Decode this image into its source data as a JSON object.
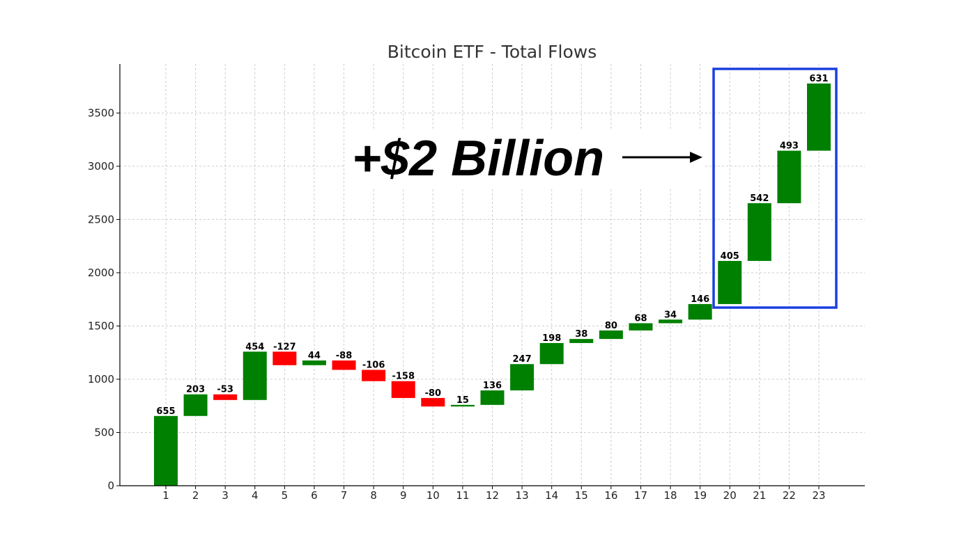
{
  "chart_data": {
    "type": "waterfall",
    "title": "Bitcoin ETF - Total Flows",
    "xlabel": "",
    "ylabel": "",
    "categories": [
      "1",
      "2",
      "3",
      "4",
      "5",
      "6",
      "7",
      "8",
      "9",
      "10",
      "11",
      "12",
      "13",
      "14",
      "15",
      "16",
      "17",
      "18",
      "19",
      "20",
      "21",
      "22",
      "23"
    ],
    "values": [
      655,
      203,
      -53,
      454,
      -127,
      44,
      -88,
      -106,
      -158,
      -80,
      15,
      136,
      247,
      198,
      38,
      80,
      68,
      34,
      146,
      405,
      542,
      493,
      631
    ],
    "yticks": [
      0,
      500,
      1000,
      1500,
      2000,
      2500,
      3000,
      3500
    ],
    "ylim": [
      0,
      3960
    ],
    "grid": true,
    "colors": {
      "positive": "#008000",
      "negative": "#ff0000",
      "highlight": "#1a3fe0"
    },
    "annotation": {
      "text": "+$2 Billion",
      "highlighted_categories": [
        "20",
        "21",
        "22",
        "23"
      ]
    }
  }
}
